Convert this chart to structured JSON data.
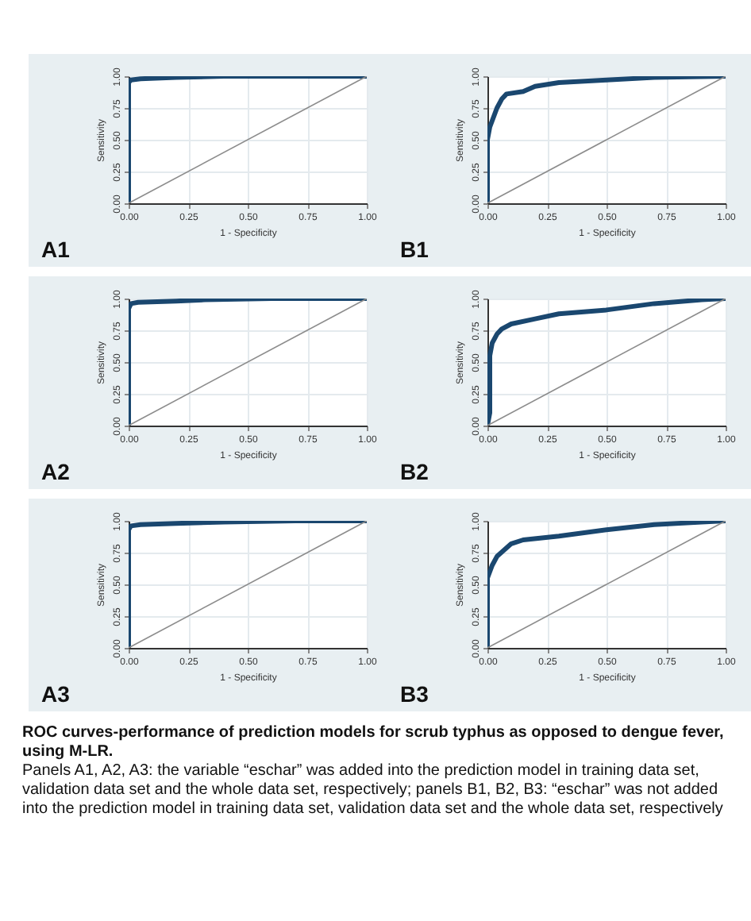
{
  "chart_data": [
    {
      "type": "line",
      "title": "A1",
      "xlabel": "1 - Specificity",
      "ylabel": "Sensitivity",
      "xlim": [
        0,
        1
      ],
      "ylim": [
        0,
        1
      ],
      "xticks": [
        {
          "value": 0,
          "label": "0.00"
        },
        {
          "value": 0.25,
          "label": "0.25"
        },
        {
          "value": 0.5,
          "label": "0.50"
        },
        {
          "value": 0.75,
          "label": "0.75"
        },
        {
          "value": 1,
          "label": "1.00"
        }
      ],
      "yticks": [
        {
          "value": 0,
          "label": "0.00"
        },
        {
          "value": 0.25,
          "label": "0.25"
        },
        {
          "value": 0.5,
          "label": "0.50"
        },
        {
          "value": 0.75,
          "label": "0.75"
        },
        {
          "value": 1,
          "label": "1.00"
        }
      ],
      "grid": true,
      "series": [
        {
          "color": "#1a476f",
          "x": [
            0,
            0,
            0.01,
            0.05,
            0.2,
            0.4,
            1
          ],
          "values": [
            0,
            0.95,
            0.97,
            0.98,
            0.99,
            1,
            1
          ]
        },
        {
          "color": "#8c8c8c",
          "x": [
            0,
            1
          ],
          "values": [
            0,
            1
          ]
        }
      ]
    },
    {
      "type": "line",
      "title": "B1",
      "xlabel": "1 - Specificity",
      "ylabel": "Sensitivity",
      "xlim": [
        0,
        1
      ],
      "ylim": [
        0,
        1
      ],
      "xticks": [
        {
          "value": 0,
          "label": "0.00"
        },
        {
          "value": 0.25,
          "label": "0.25"
        },
        {
          "value": 0.5,
          "label": "0.50"
        },
        {
          "value": 0.75,
          "label": "0.75"
        },
        {
          "value": 1,
          "label": "1.00"
        }
      ],
      "yticks": [
        {
          "value": 0,
          "label": "0.00"
        },
        {
          "value": 0.25,
          "label": "0.25"
        },
        {
          "value": 0.5,
          "label": "0.50"
        },
        {
          "value": 0.75,
          "label": "0.75"
        },
        {
          "value": 1,
          "label": "1.00"
        }
      ],
      "grid": true,
      "series": [
        {
          "color": "#1a476f",
          "x": [
            0,
            0,
            0.01,
            0.02,
            0.04,
            0.06,
            0.08,
            0.15,
            0.2,
            0.3,
            0.5,
            0.7,
            1
          ],
          "values": [
            0,
            0.5,
            0.6,
            0.65,
            0.75,
            0.82,
            0.86,
            0.88,
            0.92,
            0.95,
            0.97,
            0.99,
            1
          ]
        },
        {
          "color": "#8c8c8c",
          "x": [
            0,
            1
          ],
          "values": [
            0,
            1
          ]
        }
      ]
    },
    {
      "type": "line",
      "title": "A2",
      "xlabel": "1 - Specificity",
      "ylabel": "Sensitivity",
      "xlim": [
        0,
        1
      ],
      "ylim": [
        0,
        1
      ],
      "xticks": [
        {
          "value": 0,
          "label": "0.00"
        },
        {
          "value": 0.25,
          "label": "0.25"
        },
        {
          "value": 0.5,
          "label": "0.50"
        },
        {
          "value": 0.75,
          "label": "0.75"
        },
        {
          "value": 1,
          "label": "1.00"
        }
      ],
      "yticks": [
        {
          "value": 0,
          "label": "0.00"
        },
        {
          "value": 0.25,
          "label": "0.25"
        },
        {
          "value": 0.5,
          "label": "0.50"
        },
        {
          "value": 0.75,
          "label": "0.75"
        },
        {
          "value": 1,
          "label": "1.00"
        }
      ],
      "grid": true,
      "series": [
        {
          "color": "#1a476f",
          "x": [
            0,
            0,
            0.01,
            0.04,
            0.2,
            0.32,
            0.6,
            1
          ],
          "values": [
            0,
            0.92,
            0.96,
            0.97,
            0.98,
            0.99,
            1,
            1
          ]
        },
        {
          "color": "#8c8c8c",
          "x": [
            0,
            1
          ],
          "values": [
            0,
            1
          ]
        }
      ]
    },
    {
      "type": "line",
      "title": "B2",
      "xlabel": "1 - Specificity",
      "ylabel": "Sensitivity",
      "xlim": [
        0,
        1
      ],
      "ylim": [
        0,
        1
      ],
      "xticks": [
        {
          "value": 0,
          "label": "0.00"
        },
        {
          "value": 0.25,
          "label": "0.25"
        },
        {
          "value": 0.5,
          "label": "0.50"
        },
        {
          "value": 0.75,
          "label": "0.75"
        },
        {
          "value": 1,
          "label": "1.00"
        }
      ],
      "yticks": [
        {
          "value": 0,
          "label": "0.00"
        },
        {
          "value": 0.25,
          "label": "0.25"
        },
        {
          "value": 0.5,
          "label": "0.50"
        },
        {
          "value": 0.75,
          "label": "0.75"
        },
        {
          "value": 1,
          "label": "1.00"
        }
      ],
      "grid": true,
      "series": [
        {
          "color": "#1a476f",
          "x": [
            0,
            0.01,
            0.01,
            0.02,
            0.04,
            0.06,
            0.1,
            0.2,
            0.3,
            0.5,
            0.7,
            0.9,
            1
          ],
          "values": [
            0,
            0.1,
            0.55,
            0.65,
            0.72,
            0.76,
            0.8,
            0.84,
            0.88,
            0.91,
            0.96,
            0.99,
            1
          ]
        },
        {
          "color": "#8c8c8c",
          "x": [
            0,
            1
          ],
          "values": [
            0,
            1
          ]
        }
      ]
    },
    {
      "type": "line",
      "title": "A3",
      "xlabel": "1 - Specificity",
      "ylabel": "Sensitivity",
      "xlim": [
        0,
        1
      ],
      "ylim": [
        0,
        1
      ],
      "xticks": [
        {
          "value": 0,
          "label": "0.00"
        },
        {
          "value": 0.25,
          "label": "0.25"
        },
        {
          "value": 0.5,
          "label": "0.50"
        },
        {
          "value": 0.75,
          "label": "0.75"
        },
        {
          "value": 1,
          "label": "1.00"
        }
      ],
      "yticks": [
        {
          "value": 0,
          "label": "0.00"
        },
        {
          "value": 0.25,
          "label": "0.25"
        },
        {
          "value": 0.5,
          "label": "0.50"
        },
        {
          "value": 0.75,
          "label": "0.75"
        },
        {
          "value": 1,
          "label": "1.00"
        }
      ],
      "grid": true,
      "series": [
        {
          "color": "#1a476f",
          "x": [
            0,
            0,
            0.01,
            0.05,
            0.2,
            0.4,
            0.7,
            1
          ],
          "values": [
            0,
            0.93,
            0.96,
            0.97,
            0.98,
            0.99,
            1,
            1
          ]
        },
        {
          "color": "#8c8c8c",
          "x": [
            0,
            1
          ],
          "values": [
            0,
            1
          ]
        }
      ]
    },
    {
      "type": "line",
      "title": "B3",
      "xlabel": "1 - Specificity",
      "ylabel": "Sensitivity",
      "xlim": [
        0,
        1
      ],
      "ylim": [
        0,
        1
      ],
      "xticks": [
        {
          "value": 0,
          "label": "0.00"
        },
        {
          "value": 0.25,
          "label": "0.25"
        },
        {
          "value": 0.5,
          "label": "0.50"
        },
        {
          "value": 0.75,
          "label": "0.75"
        },
        {
          "value": 1,
          "label": "1.00"
        }
      ],
      "yticks": [
        {
          "value": 0,
          "label": "0.00"
        },
        {
          "value": 0.25,
          "label": "0.25"
        },
        {
          "value": 0.5,
          "label": "0.50"
        },
        {
          "value": 0.75,
          "label": "0.75"
        },
        {
          "value": 1,
          "label": "1.00"
        }
      ],
      "grid": true,
      "series": [
        {
          "color": "#1a476f",
          "x": [
            0,
            0,
            0.02,
            0.04,
            0.07,
            0.1,
            0.15,
            0.3,
            0.5,
            0.7,
            0.9,
            1
          ],
          "values": [
            0,
            0.55,
            0.65,
            0.72,
            0.77,
            0.82,
            0.85,
            0.88,
            0.93,
            0.97,
            0.99,
            1
          ]
        },
        {
          "color": "#8c8c8c",
          "x": [
            0,
            1
          ],
          "values": [
            0,
            1
          ]
        }
      ],
      "annotations": [
        "ROC curves-performance of prediction models for scrub typhus as opposed to dengue fever, using M-LR.",
        "Panels A1, A2, A3: the variable “eschar” was added into the prediction model in training data set, validation data set and the whole data set, respectively; panels B1, B2, B3: “eschar” was not added into the prediction model in training data set, validation data set and the whole data set, respectively"
      ]
    }
  ]
}
